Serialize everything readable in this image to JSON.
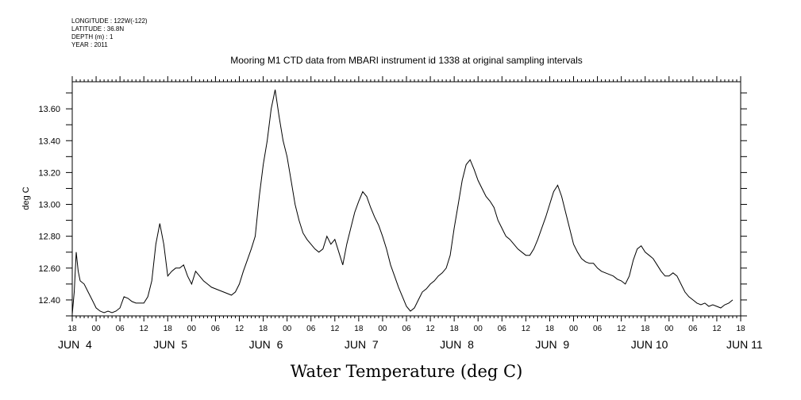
{
  "header": {
    "lines": [
      "LONGITUDE : 122W(-122)",
      "LATITUDE : 36.8N",
      "DEPTH (m) : 1",
      "YEAR : 2011"
    ]
  },
  "chart_data": {
    "type": "line",
    "title": "Mooring M1 CTD data from MBARI instrument id 1338 at original sampling intervals",
    "xlabel": "Water Temperature (deg C)",
    "ylabel": "deg C",
    "ylim": [
      12.3,
      13.77
    ],
    "xlim_hours_label": "Jun 4 18:00 to Jun 11 18:00, 2011",
    "yticks": [
      "12.40",
      "12.60",
      "12.80",
      "13.00",
      "13.20",
      "13.40",
      "13.60"
    ],
    "ytick_values": [
      12.4,
      12.6,
      12.8,
      13.0,
      13.2,
      13.4,
      13.6
    ],
    "xticks_hour_labels": [
      "18",
      "00",
      "06",
      "12",
      "18",
      "00",
      "06",
      "12",
      "18",
      "00",
      "06",
      "12",
      "18",
      "00",
      "06",
      "12",
      "18",
      "00",
      "06",
      "12",
      "18",
      "00",
      "06",
      "12",
      "18",
      "00",
      "06",
      "12",
      "18"
    ],
    "xticks_day_labels": [
      {
        "label": "JUN  4",
        "at_hour": 0
      },
      {
        "label": "JUN  5",
        "at_hour": 24
      },
      {
        "label": "JUN  6",
        "at_hour": 48
      },
      {
        "label": "JUN  7",
        "at_hour": 72
      },
      {
        "label": "JUN  8",
        "at_hour": 96
      },
      {
        "label": "JUN  9",
        "at_hour": 120
      },
      {
        "label": "JUN 10",
        "at_hour": 144
      },
      {
        "label": "JUN 11",
        "at_hour": 168
      }
    ],
    "grid": false,
    "series": [
      {
        "x_hours_since_jun4_18": [
          0,
          0.5,
          1,
          1.5,
          2,
          3,
          4,
          5,
          6,
          7,
          8,
          9,
          10,
          11,
          12,
          13,
          14,
          15,
          16,
          17,
          18,
          19,
          20,
          21,
          22,
          23,
          24,
          25,
          26,
          27,
          28,
          29,
          30,
          31,
          32,
          33,
          34,
          35,
          36,
          37,
          38,
          39,
          40,
          41,
          42,
          43,
          44,
          45,
          46,
          47,
          48,
          49,
          50,
          51,
          52,
          53,
          54,
          55,
          56,
          57,
          58,
          59,
          60,
          61,
          62,
          63,
          64,
          65,
          66,
          67,
          68,
          69,
          70,
          71,
          72,
          73,
          74,
          75,
          76,
          77,
          78,
          79,
          80,
          81,
          82,
          83,
          84,
          85,
          86,
          87,
          88,
          89,
          90,
          91,
          92,
          93,
          94,
          95,
          96,
          97,
          98,
          99,
          100,
          101,
          102,
          103,
          104,
          105,
          106,
          107,
          108,
          109,
          110,
          111,
          112,
          113,
          114,
          115,
          116,
          117,
          118,
          119,
          120,
          121,
          122,
          123,
          124,
          125,
          126,
          127,
          128,
          129,
          130,
          131,
          132,
          133,
          134,
          135,
          136,
          137,
          138,
          139,
          140,
          141,
          142,
          143,
          144,
          145,
          146,
          147,
          148,
          149,
          150,
          151,
          152,
          153,
          154,
          155,
          156,
          157,
          158,
          159,
          160,
          161,
          162,
          163,
          164,
          165,
          166,
          167,
          168
        ],
        "values": [
          12.31,
          12.45,
          12.7,
          12.58,
          12.52,
          12.5,
          12.45,
          12.4,
          12.35,
          12.33,
          12.32,
          12.33,
          12.32,
          12.33,
          12.35,
          12.42,
          12.41,
          12.39,
          12.38,
          12.38,
          12.38,
          12.42,
          12.52,
          12.75,
          12.88,
          12.75,
          12.55,
          12.58,
          12.6,
          12.6,
          12.62,
          12.55,
          12.5,
          12.58,
          12.55,
          12.52,
          12.5,
          12.48,
          12.47,
          12.46,
          12.45,
          12.44,
          12.43,
          12.45,
          12.5,
          12.58,
          12.65,
          12.72,
          12.8,
          13.05,
          13.25,
          13.4,
          13.6,
          13.72,
          13.55,
          13.4,
          13.3,
          13.15,
          13.0,
          12.9,
          12.82,
          12.78,
          12.75,
          12.72,
          12.7,
          12.72,
          12.8,
          12.75,
          12.78,
          12.7,
          12.62,
          12.75,
          12.85,
          12.95,
          13.02,
          13.08,
          13.05,
          12.98,
          12.92,
          12.87,
          12.8,
          12.72,
          12.62,
          12.55,
          12.48,
          12.42,
          12.36,
          12.33,
          12.35,
          12.4,
          12.45,
          12.47,
          12.5,
          12.52,
          12.55,
          12.57,
          12.6,
          12.68,
          12.85,
          13.0,
          13.15,
          13.25,
          13.28,
          13.22,
          13.15,
          13.1,
          13.05,
          13.02,
          12.98,
          12.9,
          12.85,
          12.8,
          12.78,
          12.75,
          12.72,
          12.7,
          12.68,
          12.68,
          12.72,
          12.78,
          12.85,
          12.92,
          13.0,
          13.08,
          13.12,
          13.05,
          12.95,
          12.85,
          12.75,
          12.7,
          12.66,
          12.64,
          12.63,
          12.63,
          12.6,
          12.58,
          12.57,
          12.56,
          12.55,
          12.53,
          12.52,
          12.5,
          12.55,
          12.65,
          12.72,
          12.74,
          12.7,
          12.68,
          12.66,
          12.62,
          12.58,
          12.55,
          12.55,
          12.57,
          12.55,
          12.5,
          12.45,
          12.42,
          12.4,
          12.38,
          12.37,
          12.38,
          12.36,
          12.37,
          12.36,
          12.35,
          12.37,
          12.38,
          12.4
        ]
      }
    ]
  }
}
